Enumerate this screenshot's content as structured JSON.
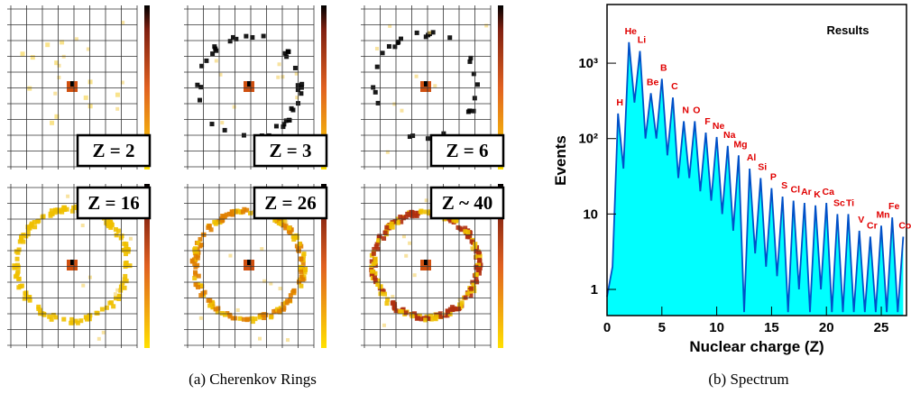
{
  "figure_a": {
    "panels": [
      "Z = 2",
      "Z = 3",
      "Z = 6",
      "Z = 16",
      "Z = 26",
      "Z ~ 40"
    ]
  },
  "captions": [
    "(a) Cherenkov Rings",
    "(b) Spectrum"
  ],
  "chart_data": {
    "type": "area",
    "title": "Results",
    "x_label": "Nuclear charge (Z)",
    "y_label": "Events",
    "log_y": true,
    "xlim": [
      0,
      27.3
    ],
    "xticks": [
      0,
      5,
      10,
      15,
      20,
      25
    ],
    "ylim": [
      0.45,
      6000
    ],
    "yticks": [
      1,
      10,
      {
        "value": 100,
        "label": "10²"
      },
      {
        "value": 1000,
        "label": "10³"
      }
    ],
    "series": [
      {
        "name": "Events",
        "color": "#0050c8",
        "fill": "#00ffff",
        "x": [
          0,
          0.5,
          1,
          1.5,
          2,
          2.5,
          3,
          3.5,
          4,
          4.5,
          5,
          5.5,
          6,
          6.5,
          7,
          7.5,
          8,
          8.5,
          9,
          9.5,
          10,
          10.5,
          11,
          11.5,
          12,
          12.5,
          13,
          13.5,
          14,
          14.5,
          15,
          15.5,
          16,
          16.5,
          17,
          17.5,
          18,
          18.5,
          19,
          19.5,
          20,
          20.5,
          21,
          21.5,
          22,
          22.5,
          23,
          23.5,
          24,
          24.5,
          25,
          25.5,
          26,
          26.5,
          27
        ],
        "values": [
          0.8,
          2,
          215,
          40,
          1900,
          300,
          1450,
          100,
          400,
          100,
          620,
          60,
          350,
          30,
          170,
          30,
          170,
          20,
          120,
          15,
          105,
          10,
          80,
          6,
          60,
          0.5,
          40,
          3,
          30,
          2,
          22,
          1.5,
          17,
          0.5,
          15,
          1,
          14,
          0.5,
          13,
          1,
          14,
          0.5,
          10,
          0.5,
          10,
          0.5,
          6,
          0.5,
          5,
          0.5,
          7,
          0.5,
          9,
          0.5,
          5
        ]
      }
    ],
    "peak_labels": [
      "H",
      "He",
      "Li",
      "Be",
      "B",
      "C",
      "N",
      "O",
      "F",
      "Ne",
      "Na",
      "Mg",
      "Al",
      "Si",
      "P",
      "S",
      "Cl",
      "Ar",
      "K",
      "Ca",
      "Sc",
      "Ti",
      "V",
      "Cr",
      "Mn",
      "Fe",
      "Co"
    ]
  }
}
